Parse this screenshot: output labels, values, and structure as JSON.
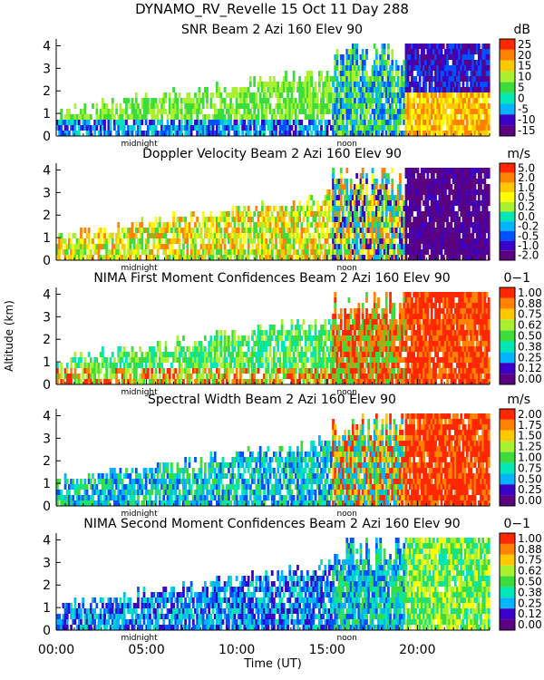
{
  "header": {
    "title": "DYNAMO_RV_Revelle  15 Oct 11 Day 288"
  },
  "colors": {
    "palette": [
      "#5a0080",
      "#3a00c8",
      "#0050ff",
      "#00b4ff",
      "#00e6b4",
      "#3cdc3c",
      "#aaf032",
      "#ffff00",
      "#ffc800",
      "#ff8200",
      "#ff2800"
    ]
  },
  "chart_data": [
    {
      "type": "heatmap",
      "title": "SNR Beam 2 Azi 160 Elev 90",
      "units": "dB",
      "ylabel": "",
      "ylim": [
        0,
        4.3
      ],
      "yticks": [
        "0",
        "1",
        "2",
        "3",
        "4"
      ],
      "colorbar": [
        "25",
        "20",
        "15",
        "10",
        "5",
        "0",
        "-5",
        "-10",
        "-15"
      ],
      "markers": [
        "midnight",
        "noon"
      ],
      "xlim": [
        0,
        24
      ]
    },
    {
      "type": "heatmap",
      "title": "Doppler Velocity Beam 2 Azi 160 Elev 90",
      "units": "m/s",
      "ylabel": "",
      "ylim": [
        0,
        4.3
      ],
      "yticks": [
        "0",
        "1",
        "2",
        "3",
        "4"
      ],
      "colorbar": [
        "5.0",
        "2.0",
        "1.0",
        "0.5",
        "0.2",
        "0.0",
        "-0.2",
        "-0.5",
        "-1.0",
        "-2.0"
      ],
      "markers": [
        "midnight",
        "noon"
      ],
      "xlim": [
        0,
        24
      ]
    },
    {
      "type": "heatmap",
      "title": "NIMA First Moment Confidences Beam 2 Azi 160 Elev 90",
      "units": "0−1",
      "ylabel": "Altitude (km)",
      "ylim": [
        0,
        4.3
      ],
      "yticks": [
        "0",
        "1",
        "2",
        "3",
        "4"
      ],
      "colorbar": [
        "1.00",
        "0.88",
        "0.75",
        "0.62",
        "0.50",
        "0.38",
        "0.25",
        "0.12",
        "0.00"
      ],
      "markers": [
        "midnight",
        "noon"
      ],
      "xlim": [
        0,
        24
      ]
    },
    {
      "type": "heatmap",
      "title": "Spectral Width Beam 2 Azi 160 Elev 90",
      "units": "m/s",
      "ylabel": "",
      "ylim": [
        0,
        4.3
      ],
      "yticks": [
        "0",
        "1",
        "2",
        "3",
        "4"
      ],
      "colorbar": [
        "2.00",
        "1.75",
        "1.50",
        "1.25",
        "1.00",
        "0.75",
        "0.50",
        "0.25",
        "0.00"
      ],
      "markers": [
        "midnight",
        "noon"
      ],
      "xlim": [
        0,
        24
      ]
    },
    {
      "type": "heatmap",
      "title": "NIMA Second Moment Confidences Beam 2 Azi 160 Elev 90",
      "units": "0−1",
      "ylabel": "",
      "ylim": [
        0,
        4.3
      ],
      "yticks": [
        "0",
        "1",
        "2",
        "3",
        "4"
      ],
      "colorbar": [
        "1.00",
        "0.88",
        "0.75",
        "0.62",
        "0.50",
        "0.38",
        "0.25",
        "0.12",
        "0.00"
      ],
      "markers": [
        "midnight",
        "noon"
      ],
      "xlim": [
        0,
        24
      ]
    }
  ],
  "xaxis": {
    "label": "Time (UT)",
    "ticks": [
      {
        "hour": 0,
        "label": "00:00"
      },
      {
        "hour": 5,
        "label": "05:00"
      },
      {
        "hour": 10,
        "label": "10:00"
      },
      {
        "hour": 15,
        "label": "15:00"
      },
      {
        "hour": 20,
        "label": "20:00"
      }
    ]
  }
}
